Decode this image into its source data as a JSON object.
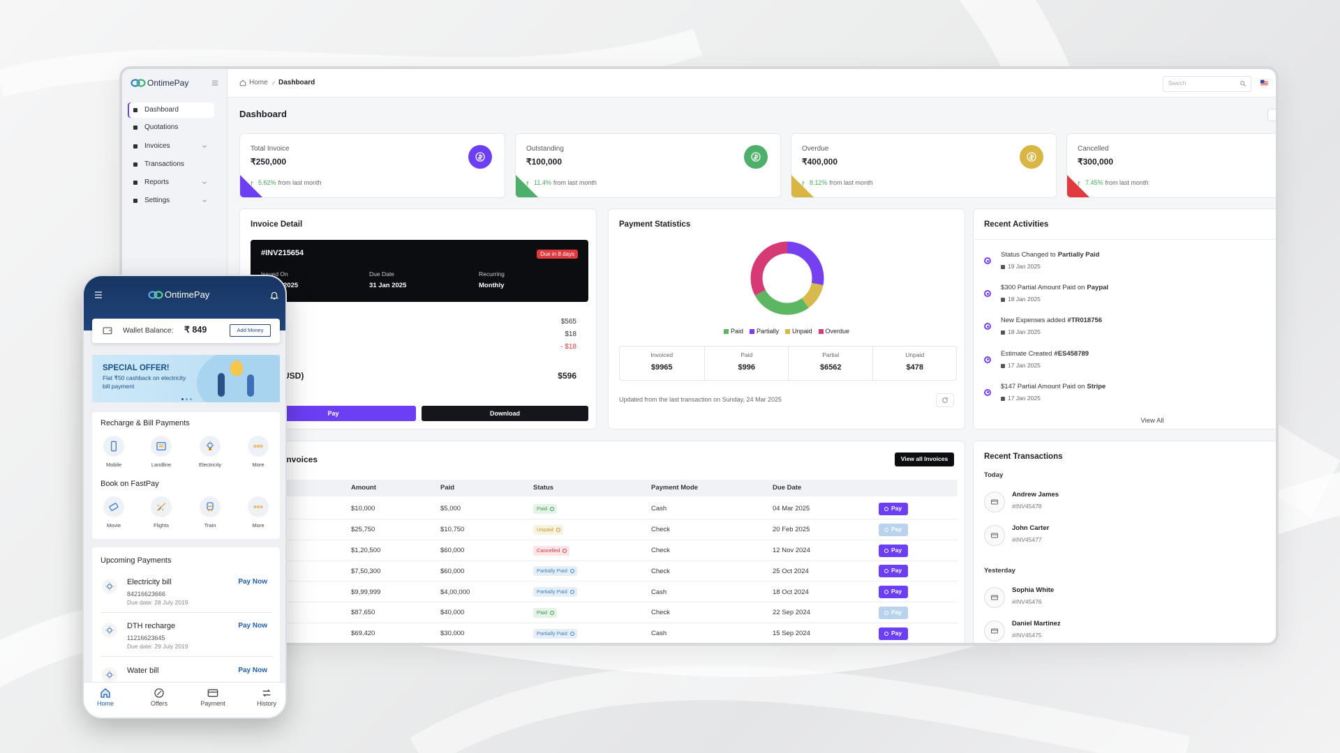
{
  "dashboard": {
    "brand": "OntimePay",
    "nav": [
      "Dashboard",
      "Quotations",
      "Invoices",
      "Transactions",
      "Reports",
      "Settings"
    ],
    "breadcrumb": [
      "Home",
      "Dashboard"
    ],
    "search_placeholder": "Search",
    "page_title": "Dashboard",
    "stat_cards": [
      {
        "label": "Total Invoice",
        "value": "₹250,000",
        "change": "5.62%",
        "change_note": "from last month",
        "color": "#6c3ef4"
      },
      {
        "label": "Outstanding",
        "value": "₹100,000",
        "change": "11.4%",
        "change_note": "from last month",
        "color": "#4caf6a"
      },
      {
        "label": "Overdue",
        "value": "₹400,000",
        "change": "8.12%",
        "change_note": "from last month",
        "color": "#d9b544"
      },
      {
        "label": "Cancelled",
        "value": "₹300,000",
        "change": "7.45%",
        "change_note": "from last month",
        "color": "#e0393e"
      }
    ],
    "invoice_detail": {
      "title": "Invoice Detail",
      "number": "#INV215654",
      "badge": "Due in 8 days",
      "fields": [
        {
          "label": "Issued On",
          "value": "2025"
        },
        {
          "label": "Due Date",
          "value": "31 Jan 2025"
        },
        {
          "label": "Recurring",
          "value": "Monthly"
        }
      ],
      "amounts": [
        "$565",
        "$18",
        "- $18"
      ],
      "total_label": "(USD)",
      "total": "$596",
      "pay_button": "Pay",
      "download_button": "Download"
    },
    "payment_statistics": {
      "title": "Payment Statistics",
      "chart": {
        "type": "donut",
        "series": [
          {
            "name": "Partially",
            "color": "#7440f0",
            "value": 28
          },
          {
            "name": "Unpaid",
            "color": "#d8b94e",
            "value": 12
          },
          {
            "name": "Paid",
            "color": "#5db662",
            "value": 27
          },
          {
            "name": "Overdue",
            "color": "#d63a74",
            "value": 33
          }
        ]
      },
      "summary": [
        {
          "label": "Invoiced",
          "value": "$9965"
        },
        {
          "label": "Paid",
          "value": "$996"
        },
        {
          "label": "Partial",
          "value": "$6562"
        },
        {
          "label": "Unpaid",
          "value": "$478"
        }
      ],
      "updated_note": "Updated from the last transaction on Sunday, 24 Mar 2025"
    },
    "recent_activities": {
      "title": "Recent Activities",
      "items": [
        {
          "text": "Status Changed to",
          "highlight": "Partially Paid",
          "date": "19 Jan 2025"
        },
        {
          "text": "$300 Partial Amount Paid on",
          "highlight": "Paypal",
          "date": "18 Jan 2025"
        },
        {
          "text": "New Expenses added",
          "highlight": "#TR018756",
          "date": "18 Jan 2025"
        },
        {
          "text": "Estimate Created",
          "highlight": "#ES458789",
          "date": "17 Jan 2025"
        },
        {
          "text": "$147 Partial Amount Paid on",
          "highlight": "Stripe",
          "date": "17 Jan 2025"
        }
      ],
      "view_all": "View All"
    },
    "invoices": {
      "title": "Invoices",
      "view_all_button": "View all Invoices",
      "columns": [
        "Amount",
        "Paid",
        "Status",
        "Payment Mode",
        "Due Date"
      ],
      "rows": [
        {
          "amount": "$10,000",
          "paid": "$5,000",
          "status": "Paid",
          "status_color": "#3a9a4f",
          "payment_mode": "Cash",
          "due_date": "04 Mar 2025",
          "action": "Pay",
          "action_disabled": false
        },
        {
          "amount": "$25,750",
          "paid": "$10,750",
          "status": "Unpaid",
          "status_color": "#c99a1c",
          "payment_mode": "Check",
          "due_date": "20 Feb 2025",
          "action": "Pay",
          "action_disabled": true
        },
        {
          "amount": "$1,20,500",
          "paid": "$60,000",
          "status": "Cancelled",
          "status_color": "#d8383d",
          "payment_mode": "Check",
          "due_date": "12 Nov 2024",
          "action": "Pay",
          "action_disabled": false
        },
        {
          "amount": "$7,50,300",
          "paid": "$60,000",
          "status": "Partially Paid",
          "status_color": "#3b82c4",
          "payment_mode": "Check",
          "due_date": "25 Oct 2024",
          "action": "Pay",
          "action_disabled": false
        },
        {
          "amount": "$9,99,999",
          "paid": "$4,00,000",
          "status": "Partially Paid",
          "status_color": "#3b82c4",
          "payment_mode": "Cash",
          "due_date": "18 Oct 2024",
          "action": "Pay",
          "action_disabled": false
        },
        {
          "amount": "$87,650",
          "paid": "$40,000",
          "status": "Paid",
          "status_color": "#3a9a4f",
          "payment_mode": "Check",
          "due_date": "22 Sep 2024",
          "action": "Pay",
          "action_disabled": true
        },
        {
          "amount": "$69,420",
          "paid": "$30,000",
          "status": "Partially Paid",
          "status_color": "#3b82c4",
          "payment_mode": "Cash",
          "due_date": "15 Sep 2024",
          "action": "Pay",
          "action_disabled": false
        }
      ]
    },
    "recent_transactions": {
      "title": "Recent Transactions",
      "groups": [
        {
          "label": "Today",
          "items": [
            {
              "name": "Andrew James",
              "invoice": "#INV45478"
            },
            {
              "name": "John Carter",
              "invoice": "#INV45477"
            }
          ]
        },
        {
          "label": "Yesterday",
          "items": [
            {
              "name": "Sophia White",
              "invoice": "#INV45476"
            },
            {
              "name": "Daniel Martinez",
              "invoice": "#INV45475"
            }
          ]
        }
      ]
    }
  },
  "mobile_app": {
    "brand": "OntimePay",
    "wallet_label": "Wallet Balance:",
    "wallet_balance": "₹ 849",
    "add_money_button": "Add Money",
    "offer": {
      "title": "SPECIAL OFFER!",
      "text": "Flat ₹50 cashback on electricity bill payment"
    },
    "sections": [
      {
        "title": "Recharge & Bill Payments",
        "items": [
          "Mobile",
          "Landline",
          "Electricity",
          "More"
        ]
      },
      {
        "title": "Book on FastPay",
        "items": [
          "Movie",
          "Flights",
          "Train",
          "More"
        ]
      }
    ],
    "upcoming": {
      "title": "Upcoming Payments",
      "items": [
        {
          "name": "Electricity bill",
          "number": "84216623666",
          "due": "Due date: 28 July 2019",
          "action": "Pay Now"
        },
        {
          "name": "DTH recharge",
          "number": "11216623645",
          "due": "Due date: 29 July 2019",
          "action": "Pay Now"
        },
        {
          "name": "Water bill",
          "action": "Pay Now"
        }
      ]
    },
    "bottom_nav": [
      "Home",
      "Offers",
      "Payment",
      "History"
    ]
  }
}
